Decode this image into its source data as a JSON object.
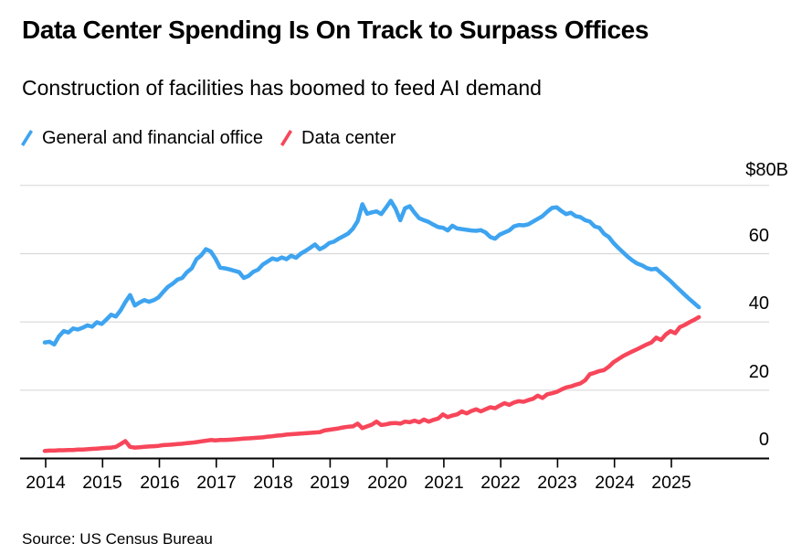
{
  "header": {
    "title": "Data Center Spending Is On Track to Surpass Offices",
    "subtitle": "Construction of facilities has boomed to feed AI demand"
  },
  "source_note": "Source: US Census Bureau",
  "chart_data": {
    "type": "line",
    "title": "Data Center Spending Is On Track to Surpass Offices",
    "subtitle": "Construction of facilities has boomed to feed AI demand",
    "unit": "$B",
    "frequency": "monthly",
    "x_start": "2014-01",
    "x_end": "2025-07",
    "ylim": [
      0,
      80
    ],
    "y_gridlines": [
      0,
      20,
      40,
      60,
      80
    ],
    "y_tick_labels": [
      "$80B",
      "60",
      "40",
      "20",
      "0"
    ],
    "x_tick_labels": [
      "2014",
      "2015",
      "2016",
      "2017",
      "2018",
      "2019",
      "2020",
      "2021",
      "2022",
      "2023",
      "2024",
      "2025"
    ],
    "grid": "horizontal",
    "legend_position": "top-left",
    "series": [
      {
        "name": "General and financial office",
        "color": "#3EA4F0",
        "values": [
          34.0,
          34.2,
          33.4,
          35.8,
          37.3,
          36.9,
          38.1,
          37.8,
          38.3,
          39.0,
          38.6,
          39.9,
          39.4,
          40.7,
          42.1,
          41.6,
          43.4,
          45.8,
          47.9,
          44.8,
          45.7,
          46.4,
          45.9,
          46.4,
          47.2,
          48.8,
          50.3,
          51.2,
          52.4,
          52.9,
          54.6,
          55.7,
          58.4,
          59.5,
          61.3,
          60.7,
          58.6,
          55.9,
          55.7,
          55.4,
          55.0,
          54.6,
          52.9,
          53.5,
          54.7,
          55.3,
          56.8,
          57.7,
          58.6,
          58.2,
          58.9,
          58.4,
          59.4,
          58.8,
          60.0,
          60.8,
          61.7,
          62.7,
          61.3,
          62.0,
          63.1,
          63.5,
          64.4,
          65.1,
          65.9,
          67.3,
          69.5,
          74.5,
          71.7,
          72.1,
          72.4,
          71.6,
          73.5,
          75.5,
          73.2,
          69.8,
          73.3,
          73.9,
          72.0,
          70.4,
          69.8,
          69.3,
          68.5,
          67.8,
          67.6,
          66.8,
          68.2,
          67.4,
          67.2,
          67.0,
          66.8,
          66.7,
          66.9,
          66.2,
          64.9,
          64.4,
          65.6,
          66.2,
          66.8,
          68.0,
          68.4,
          68.3,
          68.6,
          69.4,
          70.2,
          71.0,
          72.3,
          73.4,
          73.6,
          72.5,
          71.6,
          72.0,
          71.0,
          70.7,
          69.8,
          69.4,
          68.0,
          67.6,
          65.8,
          64.9,
          63.1,
          61.7,
          60.4,
          59.1,
          58.0,
          57.1,
          56.6,
          55.8,
          55.4,
          55.6,
          54.4,
          53.2,
          52.0,
          50.6,
          49.3,
          48.0,
          46.7,
          45.5,
          44.3
        ]
      },
      {
        "name": "Data center",
        "color": "#F7465A",
        "values": [
          2.2,
          2.3,
          2.3,
          2.4,
          2.4,
          2.5,
          2.5,
          2.6,
          2.6,
          2.7,
          2.8,
          2.9,
          3.0,
          3.1,
          3.2,
          3.4,
          4.2,
          5.1,
          3.4,
          3.2,
          3.3,
          3.4,
          3.5,
          3.6,
          3.7,
          3.9,
          4.0,
          4.1,
          4.2,
          4.3,
          4.5,
          4.6,
          4.8,
          5.0,
          5.2,
          5.4,
          5.3,
          5.4,
          5.4,
          5.5,
          5.6,
          5.7,
          5.8,
          5.9,
          6.0,
          6.1,
          6.2,
          6.4,
          6.5,
          6.7,
          6.8,
          7.0,
          7.1,
          7.2,
          7.3,
          7.4,
          7.5,
          7.6,
          7.7,
          8.2,
          8.4,
          8.6,
          8.8,
          9.1,
          9.3,
          9.4,
          10.2,
          8.9,
          9.4,
          9.9,
          10.8,
          9.8,
          10.0,
          10.3,
          10.4,
          10.2,
          10.8,
          10.6,
          11.1,
          10.6,
          11.4,
          10.8,
          11.3,
          11.7,
          12.9,
          12.1,
          12.6,
          12.9,
          13.8,
          13.2,
          13.9,
          14.4,
          13.8,
          14.4,
          15.0,
          14.7,
          15.5,
          16.2,
          15.7,
          16.4,
          16.8,
          16.6,
          17.1,
          17.5,
          18.4,
          17.7,
          18.8,
          19.1,
          19.5,
          20.2,
          20.8,
          21.1,
          21.6,
          22.0,
          22.9,
          24.7,
          25.1,
          25.6,
          25.9,
          26.9,
          28.2,
          29.1,
          30.0,
          30.7,
          31.4,
          32.0,
          32.7,
          33.4,
          34.0,
          35.4,
          34.7,
          36.3,
          37.3,
          36.7,
          38.5,
          39.1,
          39.9,
          40.6,
          41.4
        ]
      }
    ]
  }
}
